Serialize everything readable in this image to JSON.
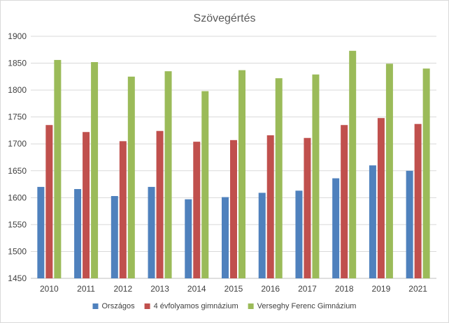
{
  "chart_data": {
    "type": "bar",
    "title": "Szövegértés",
    "xlabel": "",
    "ylabel": "",
    "ylim": [
      1450,
      1900
    ],
    "ytick_step": 50,
    "grid": true,
    "legend_position": "bottom",
    "categories": [
      "2010",
      "2011",
      "2012",
      "2013",
      "2014",
      "2015",
      "2016",
      "2017",
      "2018",
      "2019",
      "2021"
    ],
    "series": [
      {
        "name": "Országos",
        "color": "#4f81bd",
        "values": [
          1620,
          1616,
          1603,
          1620,
          1597,
          1601,
          1609,
          1613,
          1636,
          1660,
          1650
        ]
      },
      {
        "name": "4 évfolyamos gimnázium",
        "color": "#c0504d",
        "values": [
          1735,
          1722,
          1705,
          1724,
          1704,
          1707,
          1716,
          1711,
          1735,
          1748,
          1737
        ]
      },
      {
        "name": "Verseghy Ferenc Gimnázium",
        "color": "#9bbb59",
        "values": [
          1856,
          1852,
          1825,
          1835,
          1798,
          1837,
          1822,
          1829,
          1873,
          1849,
          1840
        ]
      }
    ]
  }
}
